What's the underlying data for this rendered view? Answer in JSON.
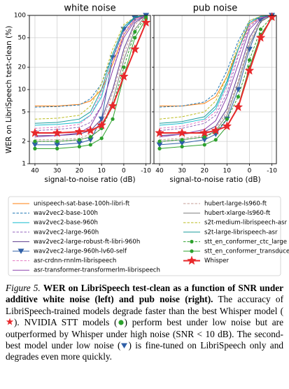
{
  "chart_data": [
    {
      "type": "line",
      "title": "white noise",
      "xlabel": "signal-to-noise ratio (dB)",
      "ylabel": "WER on LibriSpeech test-clean (%)",
      "x": [
        40,
        30,
        20,
        15,
        10,
        5,
        0,
        -5,
        -10
      ],
      "xlim": [
        42.5,
        -12
      ],
      "xticks": [
        40,
        30,
        20,
        10,
        0,
        -10
      ],
      "ylim": [
        1,
        100
      ],
      "yticks": [
        1,
        2,
        5,
        10,
        20,
        50,
        100
      ],
      "log_y": true,
      "grid": true,
      "series": [
        {
          "name": "unispeech-sat-base-100h-libri-ft",
          "color": "#ff7f0e",
          "dash": false,
          "values": [
            6,
            6,
            6.3,
            7,
            10,
            22,
            55,
            90,
            100
          ]
        },
        {
          "name": "wav2vec2-base-100h",
          "color": "#1f77b4",
          "dash": true,
          "values": [
            5.8,
            5.9,
            6.2,
            7.5,
            12,
            30,
            70,
            95,
            100
          ]
        },
        {
          "name": "wav2vec2-base-960h",
          "color": "#17becf",
          "dash": false,
          "values": [
            3.3,
            3.4,
            3.6,
            4.5,
            8,
            27,
            65,
            95,
            100
          ]
        },
        {
          "name": "wav2vec2-large-960h",
          "color": "#9467bd",
          "dash": true,
          "values": [
            2.8,
            2.9,
            3.1,
            3.6,
            6,
            18,
            55,
            90,
            100
          ]
        },
        {
          "name": "wav2vec2-large-robust-ft-libri-960h",
          "color": "#5b3a8c",
          "dash": false,
          "values": [
            2.4,
            2.4,
            2.5,
            2.8,
            4,
            10,
            35,
            80,
            100
          ]
        },
        {
          "name": "wav2vec2-large-960h-lv60-self",
          "color": "#2f5fa7",
          "dash": false,
          "marker": "triangle",
          "values": [
            1.8,
            1.8,
            1.9,
            2.1,
            4,
            27,
            65,
            92,
            100
          ]
        },
        {
          "name": "asr-crdnn-rnnlm-librispeech",
          "color": "#e377c2",
          "dash": true,
          "values": [
            3,
            3.1,
            3.4,
            4.5,
            9,
            25,
            60,
            90,
            100
          ]
        },
        {
          "name": "asr-transformer-transformerlm-librispeech",
          "color": "#8e44ad",
          "dash": false,
          "values": [
            2.3,
            2.4,
            2.6,
            3.2,
            6,
            18,
            50,
            85,
            100
          ]
        },
        {
          "name": "hubert-large-ls960-ft",
          "color": "#c49c94",
          "dash": true,
          "values": [
            2.1,
            2.1,
            2.2,
            2.5,
            3.5,
            9,
            30,
            75,
            100
          ]
        },
        {
          "name": "hubert-xlarge-ls960-ft",
          "color": "#7f7f7f",
          "dash": false,
          "values": [
            2,
            2,
            2.1,
            2.3,
            3,
            7,
            25,
            65,
            100
          ]
        },
        {
          "name": "s2t-medium-librispeech-asr",
          "color": "#bcbd22",
          "dash": true,
          "values": [
            4,
            4.1,
            4.5,
            6,
            12,
            35,
            75,
            95,
            100
          ]
        },
        {
          "name": "s2t-large-librispeech-asr",
          "color": "#1a9e9e",
          "dash": false,
          "values": [
            3.5,
            3.6,
            4,
            5,
            10,
            30,
            70,
            95,
            100
          ]
        },
        {
          "name": "stt_en_conformer_ctc_large",
          "color": "#2ca02c",
          "dash": true,
          "marker": "circle",
          "values": [
            2,
            2,
            2.1,
            2.3,
            3,
            6,
            20,
            60,
            95
          ]
        },
        {
          "name": "stt_en_conformer_transducer_xlarge",
          "color": "#2ca02c",
          "dash": false,
          "marker": "circle",
          "values": [
            1.6,
            1.6,
            1.7,
            1.8,
            2.2,
            4,
            15,
            50,
            90
          ]
        },
        {
          "name": "Whisper",
          "color": "#e8282b",
          "dash": false,
          "marker": "star",
          "values": [
            2.6,
            2.6,
            2.7,
            2.8,
            3.3,
            6,
            15,
            35,
            80
          ]
        }
      ]
    },
    {
      "type": "line",
      "title": "pub noise",
      "xlabel": "signal-to-noise ratio (dB)",
      "shared_y": true,
      "x": [
        40,
        30,
        20,
        15,
        10,
        5,
        0,
        -5,
        -10
      ],
      "xlim": [
        42.5,
        -12
      ],
      "xticks": [
        40,
        30,
        20,
        10,
        0,
        -10
      ],
      "ylim": [
        1,
        100
      ],
      "yticks": [
        1,
        2,
        5,
        10,
        20,
        50,
        100
      ],
      "log_y": true,
      "grid": true,
      "series": [
        {
          "values": [
            6,
            6,
            6.5,
            8,
            15,
            35,
            75,
            95,
            100
          ]
        },
        {
          "values": [
            5.8,
            6,
            6.8,
            9,
            18,
            45,
            85,
            97,
            100
          ]
        },
        {
          "values": [
            3.3,
            3.5,
            4,
            5.5,
            12,
            35,
            80,
            97,
            100
          ]
        },
        {
          "values": [
            2.8,
            3,
            3.5,
            4.5,
            9,
            28,
            70,
            95,
            100
          ]
        },
        {
          "values": [
            2.4,
            2.5,
            2.7,
            3.2,
            5.5,
            16,
            50,
            90,
            100
          ]
        },
        {
          "values": [
            1.8,
            1.9,
            2.1,
            2.5,
            4,
            10,
            35,
            85,
            100
          ]
        },
        {
          "values": [
            3,
            3.2,
            3.8,
            5,
            11,
            30,
            75,
            95,
            100
          ]
        },
        {
          "values": [
            2.3,
            2.5,
            2.9,
            3.8,
            8,
            22,
            65,
            92,
            100
          ]
        },
        {
          "values": [
            2.1,
            2.2,
            2.4,
            3,
            5,
            13,
            45,
            85,
            100
          ]
        },
        {
          "values": [
            2,
            2.1,
            2.3,
            2.8,
            4.5,
            12,
            40,
            82,
            100
          ]
        },
        {
          "values": [
            4,
            4.3,
            5,
            7,
            15,
            40,
            85,
            97,
            100
          ]
        },
        {
          "values": [
            3.5,
            3.7,
            4.3,
            6,
            13,
            35,
            80,
            96,
            100
          ]
        },
        {
          "values": [
            2,
            2.1,
            2.3,
            2.7,
            4,
            8,
            25,
            65,
            95
          ]
        },
        {
          "values": [
            1.6,
            1.7,
            1.8,
            2.1,
            3.2,
            6,
            20,
            55,
            92
          ]
        },
        {
          "values": [
            2.6,
            2.6,
            2.6,
            2.8,
            3.2,
            5.8,
            18,
            50,
            95
          ]
        }
      ]
    }
  ],
  "caption": {
    "label": "Figure 5.",
    "title": "WER on LibriSpeech test-clean as a function of SNR under additive white noise (left) and pub noise (right).",
    "text": [
      "The accuracy of LibriSpeech-trained models degrade faster than the best Whisper model (",
      "). NVIDIA STT models (",
      ") perform best under low noise but are outperformed by Whisper under high noise (SNR < 10 dB). The second-best model under low noise (",
      ") is fine-tuned on LibriSpeech only and degrades even more quickly."
    ]
  }
}
